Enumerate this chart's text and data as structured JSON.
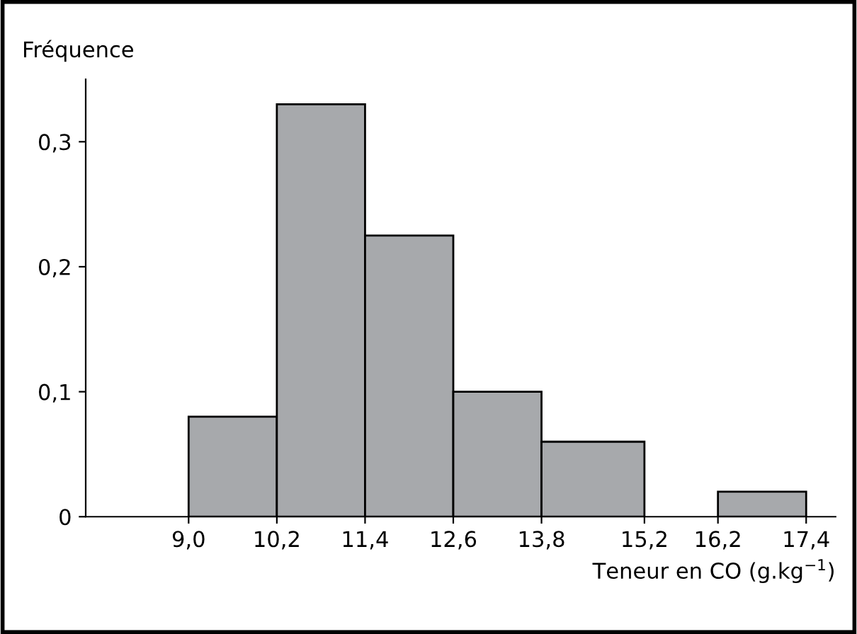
{
  "chart_data": {
    "type": "histogram",
    "ylabel": "Fréquence",
    "xlabel": "Teneur en CO (g.kg$^{−1}$)",
    "bins": [
      9.0,
      10.2,
      11.4,
      12.6,
      13.8,
      15.2,
      16.2,
      17.4
    ],
    "values": [
      0.08,
      0.33,
      0.225,
      0.1,
      0.06,
      null,
      0.02
    ],
    "color": "#a7a9ac",
    "xlim": [
      7.6,
      17.8
    ],
    "xticks": [
      {
        "value": 9.0,
        "label": "9,0"
      },
      {
        "value": 10.2,
        "label": "10,2"
      },
      {
        "value": 11.4,
        "label": "11,4"
      },
      {
        "value": 12.6,
        "label": "12,6"
      },
      {
        "value": 13.8,
        "label": "13,8"
      },
      {
        "value": 15.2,
        "label": "15,2"
      },
      {
        "value": 16.2,
        "label": "16,2"
      },
      {
        "value": 17.4,
        "label": "17,4"
      }
    ],
    "ylim": [
      0,
      0.35
    ],
    "yticks": [
      {
        "value": 0,
        "label": "0"
      },
      {
        "value": 0.1,
        "label": "0,1"
      },
      {
        "value": 0.2,
        "label": "0,2"
      },
      {
        "value": 0.3,
        "label": "0,3"
      }
    ],
    "grid": false
  }
}
